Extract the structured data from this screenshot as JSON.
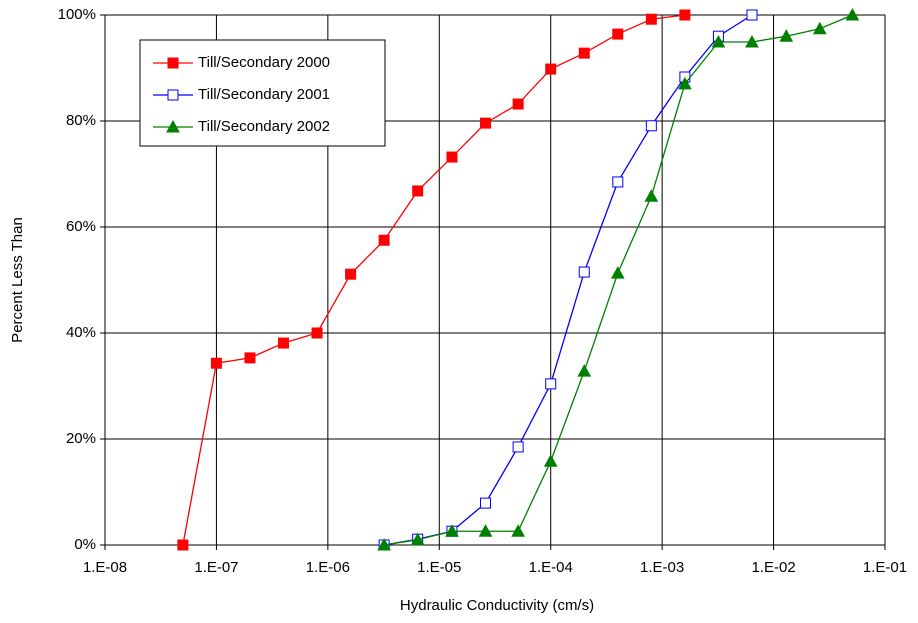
{
  "chart_data": {
    "type": "line",
    "x_label": "Hydraulic Conductivity (cm/s)",
    "y_label": "Percent Less Than",
    "x_log": true,
    "grid": true,
    "legend": "top-left",
    "xlim": [
      1e-08,
      0.1
    ],
    "xticks": [
      {
        "value": 1e-08,
        "label": "1.E-08"
      },
      {
        "value": 1e-07,
        "label": "1.E-07"
      },
      {
        "value": 1e-06,
        "label": "1.E-06"
      },
      {
        "value": 1e-05,
        "label": "1.E-05"
      },
      {
        "value": 0.0001,
        "label": "1.E-04"
      },
      {
        "value": 0.001,
        "label": "1.E-03"
      },
      {
        "value": 0.01,
        "label": "1.E-02"
      },
      {
        "value": 0.1,
        "label": "1.E-01"
      }
    ],
    "ylim": [
      0,
      100
    ],
    "yticks": [
      {
        "value": 0,
        "label": "0%"
      },
      {
        "value": 20,
        "label": "20%"
      },
      {
        "value": 40,
        "label": "40%"
      },
      {
        "value": 60,
        "label": "60%"
      },
      {
        "value": 80,
        "label": "80%"
      },
      {
        "value": 100,
        "label": "100%"
      }
    ],
    "series": [
      {
        "name": "Till/Secondary 2000",
        "color": "#ff0000",
        "marker": "square",
        "x": [
          5e-08,
          1e-07,
          2e-07,
          4e-07,
          8e-07,
          1.6e-06,
          3.2e-06,
          6.4e-06,
          1.3e-05,
          2.6e-05,
          5.1e-05,
          0.0001,
          0.0002,
          0.0004,
          0.0008,
          0.0016
        ],
        "values": [
          0,
          34.3,
          35.3,
          38.1,
          40.0,
          51.1,
          57.5,
          66.8,
          73.2,
          79.6,
          83.2,
          89.8,
          92.8,
          96.4,
          99.2,
          100
        ]
      },
      {
        "name": "Till/Secondary 2001",
        "color": "#0000ff",
        "marker": "open-square",
        "x": [
          3.2e-06,
          6.4e-06,
          1.3e-05,
          2.6e-05,
          5.1e-05,
          0.0001,
          0.0002,
          0.0004,
          0.0008,
          0.0016,
          0.0032,
          0.0064
        ],
        "values": [
          0,
          1.1,
          2.6,
          7.9,
          18.5,
          30.4,
          51.5,
          68.5,
          79.1,
          88.3,
          96.0,
          100
        ]
      },
      {
        "name": "Till/Secondary 2002",
        "color": "#008000",
        "marker": "triangle",
        "x": [
          3.2e-06,
          6.4e-06,
          1.3e-05,
          2.6e-05,
          5.1e-05,
          0.0001,
          0.0002,
          0.0004,
          0.0008,
          0.0016,
          0.0032,
          0.0064,
          0.013,
          0.026,
          0.051
        ],
        "values": [
          0,
          1.0,
          2.6,
          2.6,
          2.6,
          15.8,
          32.8,
          51.3,
          65.8,
          87.0,
          94.9,
          94.9,
          96.0,
          97.4,
          100
        ]
      }
    ]
  }
}
